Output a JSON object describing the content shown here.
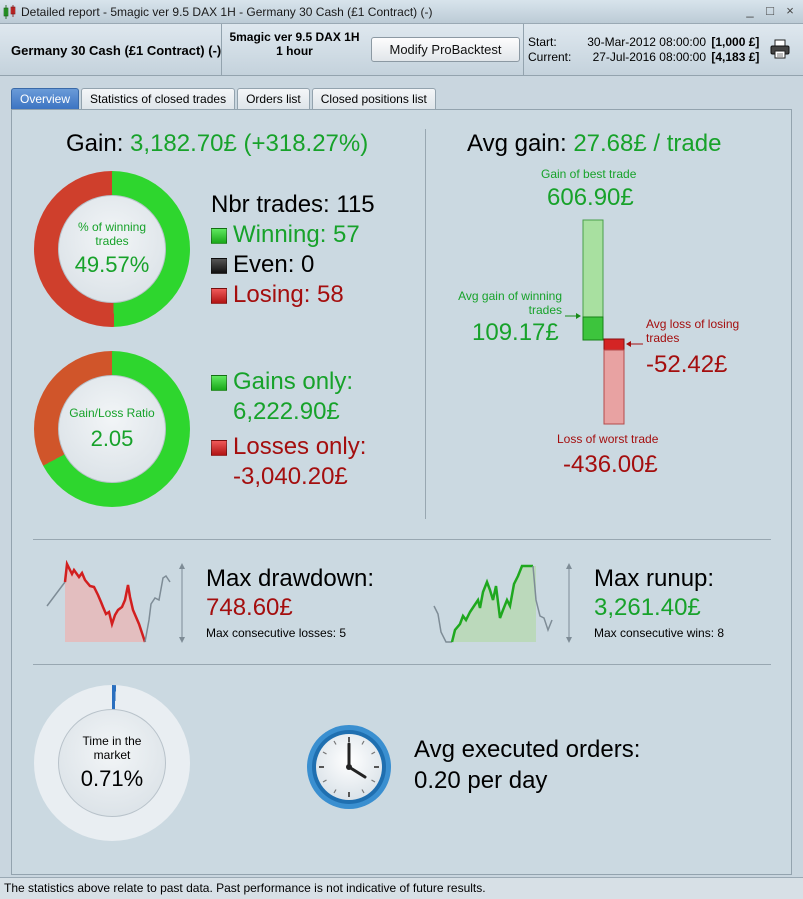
{
  "window": {
    "title": "Detailed report - 5magic ver 9.5 DAX 1H - Germany 30 Cash (£1 Contract) (-)",
    "buttons": [
      "_",
      "□",
      "×"
    ]
  },
  "header": {
    "instrument": "Germany 30 Cash (£1 Contract) (-)",
    "strategy_line1": "5magic ver 9.5 DAX 1H",
    "strategy_line2": "1 hour",
    "modify_button": "Modify ProBacktest",
    "start_label": "Start:",
    "start_date": "30-Mar-2012 08:00:00",
    "start_amount": "[1,000 £]",
    "current_label": "Current:",
    "current_date": "27-Jul-2016 08:00:00",
    "current_amount": "[4,183 £]"
  },
  "tabs": [
    {
      "label": "Overview",
      "active": true
    },
    {
      "label": "Statistics of closed trades",
      "active": false
    },
    {
      "label": "Orders list",
      "active": false
    },
    {
      "label": "Closed positions list",
      "active": false
    }
  ],
  "gain": {
    "label": "Gain:",
    "value": "3,182.70£ (+318.27%)"
  },
  "winning_ring": {
    "label": "% of winning trades",
    "value": "49.57%",
    "fraction": 0.4957
  },
  "trades": {
    "nbr_label": "Nbr trades: 115",
    "winning_label": "Winning: 57",
    "even_label": "Even: 0",
    "losing_label": "Losing: 58"
  },
  "ratio_ring": {
    "label": "Gain/Loss Ratio",
    "value": "2.05",
    "gain_fraction": 0.672
  },
  "gains": {
    "gains_label": "Gains only:",
    "gains_value": "6,222.90£",
    "losses_label": "Losses only:",
    "losses_value": "-3,040.20£"
  },
  "avg_gain": {
    "label": "Avg gain:",
    "value": "27.68£ / trade",
    "best_label": "Gain of best trade",
    "best_value": "606.90£",
    "avg_win_label_1": "Avg gain of winning",
    "avg_win_label_2": "trades",
    "avg_win_value": "109.17£",
    "avg_loss_label_1": "Avg loss of losing",
    "avg_loss_label_2": "trades",
    "avg_loss_value": "-52.42£",
    "worst_label": "Loss of worst trade",
    "worst_value": "-436.00£"
  },
  "drawdown": {
    "title": "Max drawdown:",
    "value": "748.60£",
    "sub": "Max consecutive losses: 5"
  },
  "runup": {
    "title": "Max runup:",
    "value": "3,261.40£",
    "sub": "Max consecutive wins: 8"
  },
  "market_ring": {
    "label": "Time in the market",
    "value": "0.71%",
    "fraction": 0.0071
  },
  "orders": {
    "title": "Avg executed orders:",
    "value": "0.20 per day"
  },
  "status": {
    "text": "The statistics above relate to past data. Past performance is not indicative of future results."
  },
  "colors": {
    "gain_green": "#17a22a",
    "loss_red": "#a40e0e",
    "tab_active": "#3a72c1"
  }
}
